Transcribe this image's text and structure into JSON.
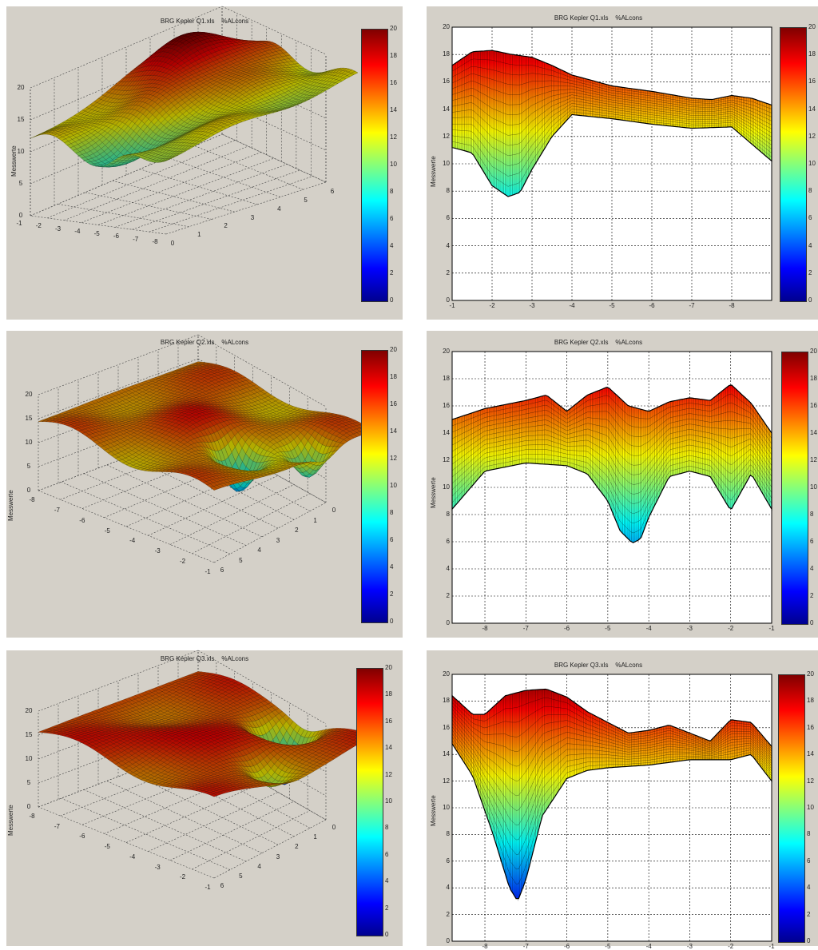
{
  "charts": [
    {
      "title": "BRG Kepler Q1.xls    %ALcons",
      "ylabel": "Messwerte"
    },
    {
      "title": "BRG Kepler Q1.xls    %ALcons",
      "ylabel": "Messwerte"
    },
    {
      "title": "BRG Kepler Q2.xls    %ALcons",
      "ylabel": "Messwerte"
    },
    {
      "title": "BRG Kepler Q2.xls    %ALcons",
      "ylabel": "Messwerte"
    },
    {
      "title": "BRG Kepler Q3.xls    %ALcons",
      "ylabel": "Messwerte"
    },
    {
      "title": "BRG Kepler Q3.xls    %ALcons",
      "ylabel": "Messwerte"
    }
  ],
  "colorbar_ticks": [
    "0",
    "2",
    "4",
    "6",
    "8",
    "10",
    "12",
    "14",
    "16",
    "18",
    "20"
  ],
  "colors": {
    "panel_bg": "#d4d0c8",
    "surface_high": "#8b1a10",
    "surface_mid": "#7a6a20",
    "surface_low": "#00a0d0"
  },
  "chart_data": [
    {
      "type": "surface3d",
      "title": "BRG Kepler Q1.xls    %ALcons",
      "zlabel": "Messwerte",
      "zlim": [
        0,
        20
      ],
      "z_ticks": [
        "0",
        "5",
        "10",
        "15",
        "20"
      ],
      "x_ticks": [
        "-1",
        "-2",
        "-3",
        "-4",
        "-5",
        "-6",
        "-7",
        "-8"
      ],
      "y_ticks": [
        "0",
        "1",
        "2",
        "3",
        "4",
        "5",
        "6"
      ],
      "colorbar": {
        "range": [
          0,
          20
        ],
        "ticks": [
          "0",
          "2",
          "4",
          "6",
          "8",
          "10",
          "12",
          "14",
          "16",
          "18",
          "20"
        ]
      }
    },
    {
      "type": "surface-side-view",
      "title": "BRG Kepler Q1.xls    %ALcons",
      "ylabel": "Messwerte",
      "ylim": [
        0,
        20
      ],
      "grid": true,
      "y_ticks": [
        "0",
        "2",
        "4",
        "6",
        "8",
        "10",
        "12",
        "14",
        "16",
        "18",
        "20"
      ],
      "x_ticks": [
        "-1",
        "-2",
        "-3",
        "-4",
        "-5",
        "-6",
        "-7",
        "-8"
      ],
      "series": [
        {
          "x": [
            -1,
            -1.5,
            -2,
            -2.5,
            -3,
            -3.5,
            -4,
            -5,
            -6,
            -7,
            -7.5,
            -8,
            -8.5,
            -9
          ],
          "values": [
            17.2,
            18.2,
            18.3,
            18.0,
            17.8,
            17.2,
            16.5,
            15.7,
            15.3,
            14.8,
            14.7,
            15.0,
            14.8,
            14.3
          ]
        },
        {
          "x": [
            -1,
            -1.5,
            -2,
            -2.4,
            -2.7,
            -3,
            -3.5,
            -4,
            -5,
            -6,
            -7,
            -8,
            -9
          ],
          "values": [
            11.2,
            10.8,
            8.4,
            7.6,
            7.9,
            9.6,
            12.0,
            13.6,
            13.3,
            12.9,
            12.6,
            12.7,
            10.2
          ]
        }
      ],
      "colorbar": {
        "range": [
          0,
          20
        ],
        "ticks": [
          "0",
          "2",
          "4",
          "6",
          "8",
          "10",
          "12",
          "14",
          "16",
          "18",
          "20"
        ]
      }
    },
    {
      "type": "surface3d",
      "title": "BRG Kepler Q2.xls    %ALcons",
      "zlabel": "Messwerte",
      "zlim": [
        0,
        20
      ],
      "z_ticks": [
        "0",
        "5",
        "10",
        "15",
        "20"
      ],
      "x_ticks": [
        "-8",
        "-7",
        "-6",
        "-5",
        "-4",
        "-3",
        "-2",
        "-1"
      ],
      "y_ticks": [
        "6",
        "5",
        "4",
        "3",
        "2",
        "1",
        "0"
      ],
      "colorbar": {
        "range": [
          0,
          20
        ],
        "ticks": [
          "0",
          "2",
          "4",
          "6",
          "8",
          "10",
          "12",
          "14",
          "16",
          "18",
          "20"
        ]
      }
    },
    {
      "type": "surface-side-view",
      "title": "BRG Kepler Q2.xls    %ALcons",
      "ylabel": "Messwerte",
      "ylim": [
        0,
        20
      ],
      "grid": true,
      "y_ticks": [
        "0",
        "2",
        "4",
        "6",
        "8",
        "10",
        "12",
        "14",
        "16",
        "18",
        "20"
      ],
      "x_ticks": [
        "-8",
        "-7",
        "-6",
        "-5",
        "-4",
        "-3",
        "-2",
        "-1"
      ],
      "series": [
        {
          "x": [
            -8.8,
            -8,
            -7,
            -6.5,
            -6,
            -5.5,
            -5,
            -4.5,
            -4,
            -3.5,
            -3,
            -2.5,
            -2,
            -1.5,
            -1
          ],
          "values": [
            15.0,
            15.8,
            16.4,
            16.8,
            15.6,
            16.8,
            17.4,
            16.0,
            15.6,
            16.3,
            16.6,
            16.4,
            17.6,
            16.2,
            14.0
          ]
        },
        {
          "x": [
            -8.8,
            -8,
            -7,
            -6,
            -5.5,
            -5,
            -4.7,
            -4.4,
            -4.2,
            -4,
            -3.5,
            -3,
            -2.5,
            -2,
            -1.5,
            -1
          ],
          "values": [
            8.4,
            11.2,
            11.8,
            11.6,
            11.0,
            9.0,
            6.8,
            5.9,
            6.2,
            7.8,
            10.8,
            11.2,
            10.8,
            8.3,
            11.0,
            8.4
          ]
        }
      ],
      "colorbar": {
        "range": [
          0,
          20
        ],
        "ticks": [
          "0",
          "2",
          "4",
          "6",
          "8",
          "10",
          "12",
          "14",
          "16",
          "18",
          "20"
        ]
      }
    },
    {
      "type": "surface3d",
      "title": "BRG Kepler Q3.xls    %ALcons",
      "zlabel": "Messwerte",
      "zlim": [
        0,
        20
      ],
      "z_ticks": [
        "0",
        "5",
        "10",
        "15",
        "20"
      ],
      "x_ticks": [
        "-8",
        "-7",
        "-6",
        "-5",
        "-4",
        "-3",
        "-2",
        "-1"
      ],
      "y_ticks": [
        "6",
        "5",
        "4",
        "3",
        "2",
        "1",
        "0"
      ],
      "colorbar": {
        "range": [
          0,
          20
        ],
        "ticks": [
          "0",
          "2",
          "4",
          "6",
          "8",
          "10",
          "12",
          "14",
          "16",
          "18",
          "20"
        ]
      }
    },
    {
      "type": "surface-side-view",
      "title": "BRG Kepler Q3.xls    %ALcons",
      "ylabel": "Messwerte",
      "ylim": [
        0,
        20
      ],
      "grid": true,
      "y_ticks": [
        "0",
        "2",
        "4",
        "6",
        "8",
        "10",
        "12",
        "14",
        "16",
        "18",
        "20"
      ],
      "x_ticks": [
        "-8",
        "-7",
        "-6",
        "-5",
        "-4",
        "-3",
        "-2",
        "-1"
      ],
      "series": [
        {
          "x": [
            -8.8,
            -8.3,
            -8,
            -7.5,
            -7,
            -6.5,
            -6,
            -5.5,
            -5,
            -4.5,
            -4,
            -3.5,
            -3,
            -2.5,
            -2,
            -1.5,
            -1
          ],
          "values": [
            18.4,
            17.0,
            17.0,
            18.4,
            18.8,
            18.9,
            18.3,
            17.2,
            16.4,
            15.6,
            15.8,
            16.2,
            15.6,
            15.0,
            16.6,
            16.4,
            14.6
          ]
        },
        {
          "x": [
            -8.8,
            -8.3,
            -7.8,
            -7.4,
            -7.2,
            -7,
            -6.6,
            -6,
            -5.5,
            -5,
            -4,
            -3,
            -2,
            -1.5,
            -1
          ],
          "values": [
            14.8,
            12.4,
            8.0,
            4.0,
            3.0,
            4.6,
            9.4,
            12.2,
            12.8,
            13.0,
            13.2,
            13.6,
            13.6,
            14.0,
            12.0
          ]
        }
      ],
      "colorbar": {
        "range": [
          0,
          20
        ],
        "ticks": [
          "0",
          "2",
          "4",
          "6",
          "8",
          "10",
          "12",
          "14",
          "16",
          "18",
          "20"
        ]
      }
    }
  ]
}
